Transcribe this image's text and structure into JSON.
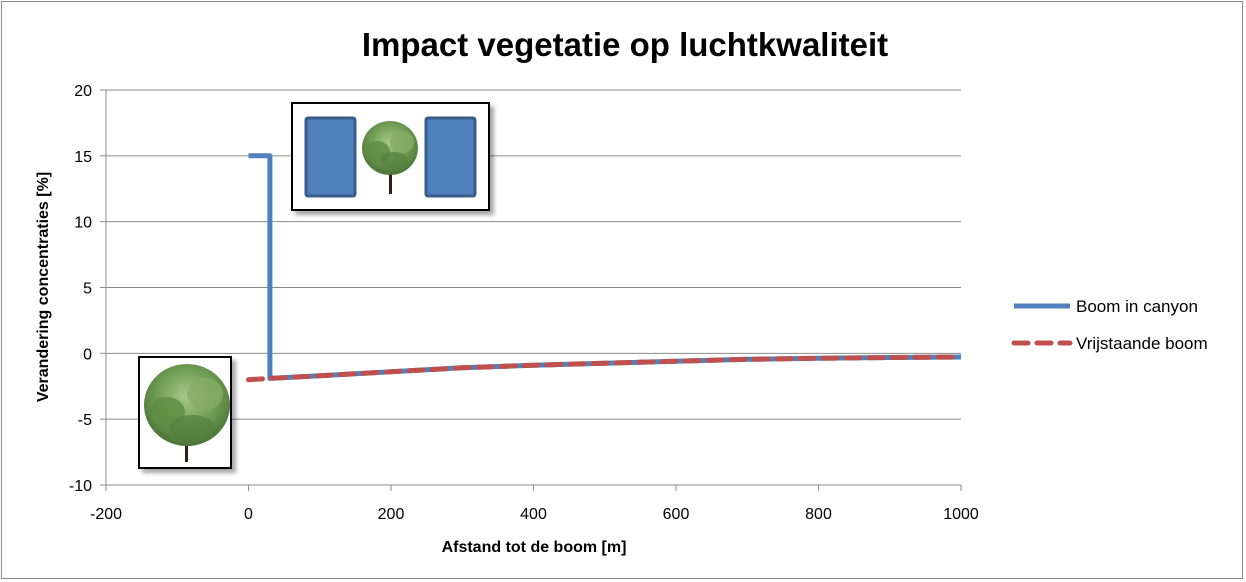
{
  "chart_data": {
    "type": "line",
    "title": "Impact vegetatie op luchtkwaliteit",
    "xlabel": "Afstand tot de boom [m]",
    "ylabel": "Verandering concentraties [%]",
    "xlim": [
      -200,
      1000
    ],
    "ylim": [
      -10,
      20
    ],
    "x_ticks": [
      "-200",
      "0",
      "200",
      "400",
      "600",
      "800",
      "1000"
    ],
    "y_ticks": [
      "-10",
      "-5",
      "0",
      "5",
      "10",
      "15",
      "20"
    ],
    "grid": "horizontal",
    "legend_position": "right",
    "series": [
      {
        "name": "Boom in canyon",
        "color": "#4f81bd",
        "style": "solid",
        "points": [
          [
            0,
            15
          ],
          [
            30,
            15
          ],
          [
            30,
            -1.9
          ],
          [
            100,
            -1.7
          ],
          [
            200,
            -1.4
          ],
          [
            300,
            -1.1
          ],
          [
            400,
            -0.9
          ],
          [
            500,
            -0.75
          ],
          [
            600,
            -0.6
          ],
          [
            700,
            -0.45
          ],
          [
            800,
            -0.38
          ],
          [
            900,
            -0.32
          ],
          [
            1000,
            -0.28
          ]
        ]
      },
      {
        "name": "Vrijstaande boom",
        "color": "#c0504d",
        "style": "dashed",
        "points": [
          [
            0,
            -2.0
          ],
          [
            30,
            -1.9
          ],
          [
            100,
            -1.7
          ],
          [
            200,
            -1.4
          ],
          [
            300,
            -1.1
          ],
          [
            400,
            -0.9
          ],
          [
            500,
            -0.75
          ],
          [
            600,
            -0.6
          ],
          [
            700,
            -0.45
          ],
          [
            800,
            -0.38
          ],
          [
            900,
            -0.32
          ],
          [
            1000,
            -0.28
          ]
        ]
      }
    ]
  },
  "insets": {
    "canyon_icon": "street-canyon-tree-icon",
    "tree_icon": "single-tree-icon"
  }
}
